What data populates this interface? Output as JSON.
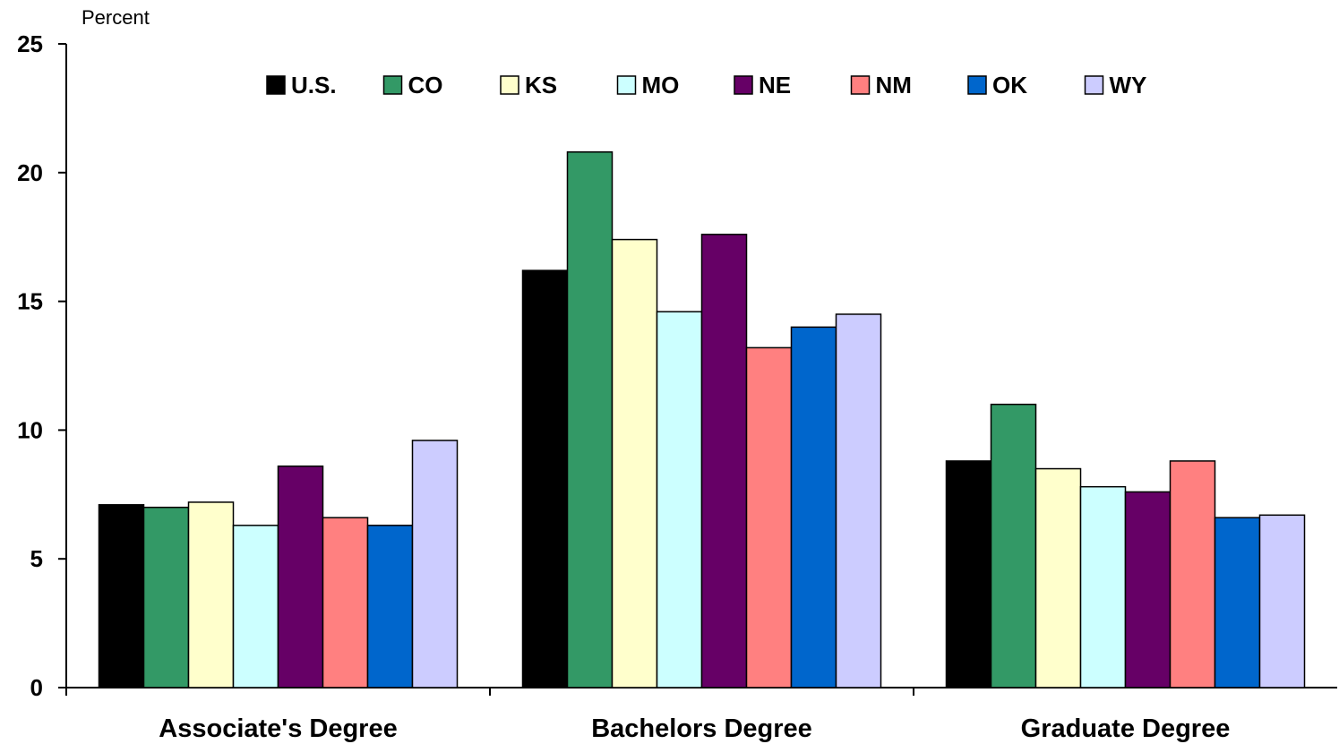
{
  "chart_data": {
    "type": "bar",
    "unit_label": "Percent",
    "ylim": [
      0,
      25
    ],
    "yticks": [
      0,
      5,
      10,
      15,
      20,
      25
    ],
    "grid": false,
    "legend_position": "top",
    "categories": [
      "Associate's Degree",
      "Bachelors Degree",
      "Graduate Degree"
    ],
    "series": [
      {
        "name": "U.S.",
        "color": "#000000",
        "values": [
          7.1,
          16.2,
          8.8
        ]
      },
      {
        "name": "CO",
        "color": "#339966",
        "values": [
          7.0,
          20.8,
          11.0
        ]
      },
      {
        "name": "KS",
        "color": "#FFFFCC",
        "values": [
          7.2,
          17.4,
          8.5
        ]
      },
      {
        "name": "MO",
        "color": "#CCFFFF",
        "values": [
          6.3,
          14.6,
          7.8
        ]
      },
      {
        "name": "NE",
        "color": "#660066",
        "values": [
          8.6,
          17.6,
          7.6
        ]
      },
      {
        "name": "NM",
        "color": "#FF8080",
        "values": [
          6.6,
          13.2,
          8.8
        ]
      },
      {
        "name": "OK",
        "color": "#0066CC",
        "values": [
          6.3,
          14.0,
          6.6
        ]
      },
      {
        "name": "WY",
        "color": "#CCCCFF",
        "values": [
          9.6,
          14.5,
          6.7
        ]
      }
    ]
  }
}
